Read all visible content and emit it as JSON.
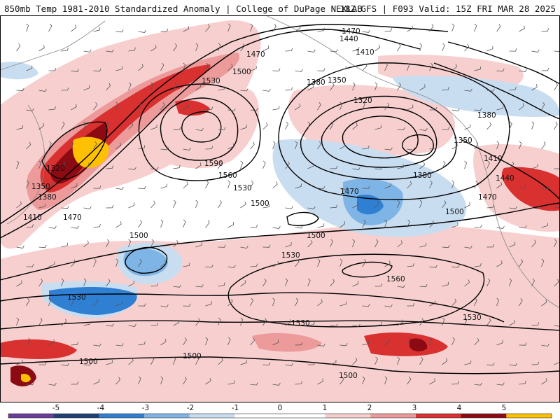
{
  "header": {
    "title_left": "850mb Temp 1981-2010 Standardized Anomaly | College of DuPage NEXLAB",
    "title_right": "18Z GFS | F093 Valid: 15Z FRI MAR 28 2025"
  },
  "colors": {
    "anom_neg5": "#6a3d9a",
    "anom_neg4": "#1f3f77",
    "anom_neg3": "#2f7fd3",
    "anom_neg2": "#7fb4e6",
    "anom_neg1": "#c9ddf1",
    "anom_0": "#ffffff",
    "anom_pos1": "#f7cfcf",
    "anom_pos2": "#ec9a9a",
    "anom_pos3": "#d93030",
    "anom_pos4": "#8c0a12",
    "anom_pos5": "#ffc000",
    "contour": "#000000",
    "coast": "#888888"
  },
  "contour_labels": [
    {
      "text": "1470"
    },
    {
      "text": "1440"
    },
    {
      "text": "1410"
    },
    {
      "text": "1470"
    },
    {
      "text": "1500"
    },
    {
      "text": "1530"
    },
    {
      "text": "1380"
    },
    {
      "text": "1350"
    },
    {
      "text": "1320"
    },
    {
      "text": "1380"
    },
    {
      "text": "1350"
    },
    {
      "text": "1590"
    },
    {
      "text": "1560"
    },
    {
      "text": "1530"
    },
    {
      "text": "1500"
    },
    {
      "text": "1470"
    },
    {
      "text": "1380"
    },
    {
      "text": "1500"
    },
    {
      "text": "1410"
    },
    {
      "text": "1440"
    },
    {
      "text": "1470"
    },
    {
      "text": "1320"
    },
    {
      "text": "1350"
    },
    {
      "text": "1380"
    },
    {
      "text": "1410"
    },
    {
      "text": "1470"
    },
    {
      "text": "1500"
    },
    {
      "text": "1500"
    },
    {
      "text": "1530"
    },
    {
      "text": "1530"
    },
    {
      "text": "1560"
    },
    {
      "text": "1530"
    },
    {
      "text": "1530"
    },
    {
      "text": "1500"
    },
    {
      "text": "1500"
    },
    {
      "text": "1500"
    }
  ],
  "colorbar": {
    "ticks": [
      "-5",
      "-4",
      "-3",
      "-2",
      "-1",
      "0",
      "1",
      "2",
      "3",
      "4",
      "5"
    ]
  }
}
